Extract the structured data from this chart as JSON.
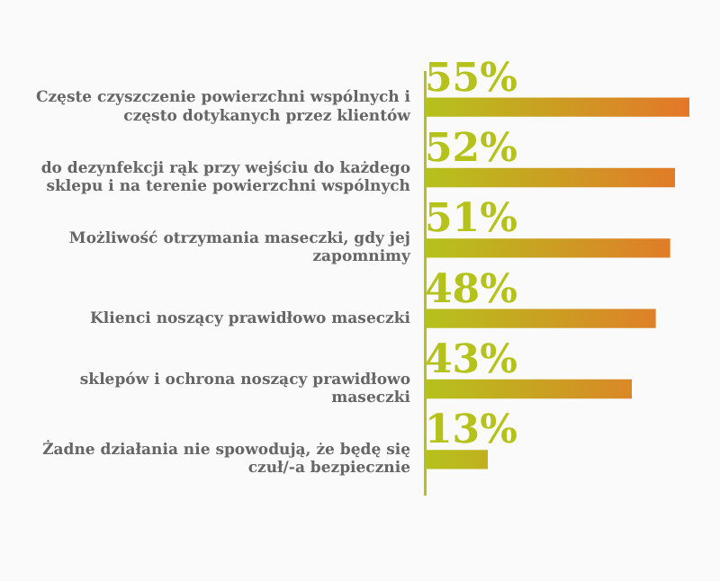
{
  "chart_data": {
    "type": "bar",
    "orientation": "horizontal",
    "categories": [
      "Częste czyszczenie powierzchni wspólnych i często dotykanych przez klientów",
      "do dezynfekcji rąk przy wejściu do każdego sklepu i na terenie powierzchni wspólnych",
      "Możliwość otrzymania maseczki, gdy jej zapomnimy",
      "Klienci noszący prawidłowo maseczki",
      "sklepów i ochrona noszący prawidłowo maseczki",
      "Żadne działania nie spowodują, że będę się czuł/-a bezpiecznie"
    ],
    "values": [
      55,
      52,
      51,
      48,
      43,
      13
    ],
    "color": "#b5c21c",
    "data_labels": true,
    "value_labels": [
      "55%",
      "52%",
      "51%",
      "48%",
      "43%",
      "13%"
    ],
    "grid": false,
    "legend": false,
    "tick_labels": "y"
  }
}
